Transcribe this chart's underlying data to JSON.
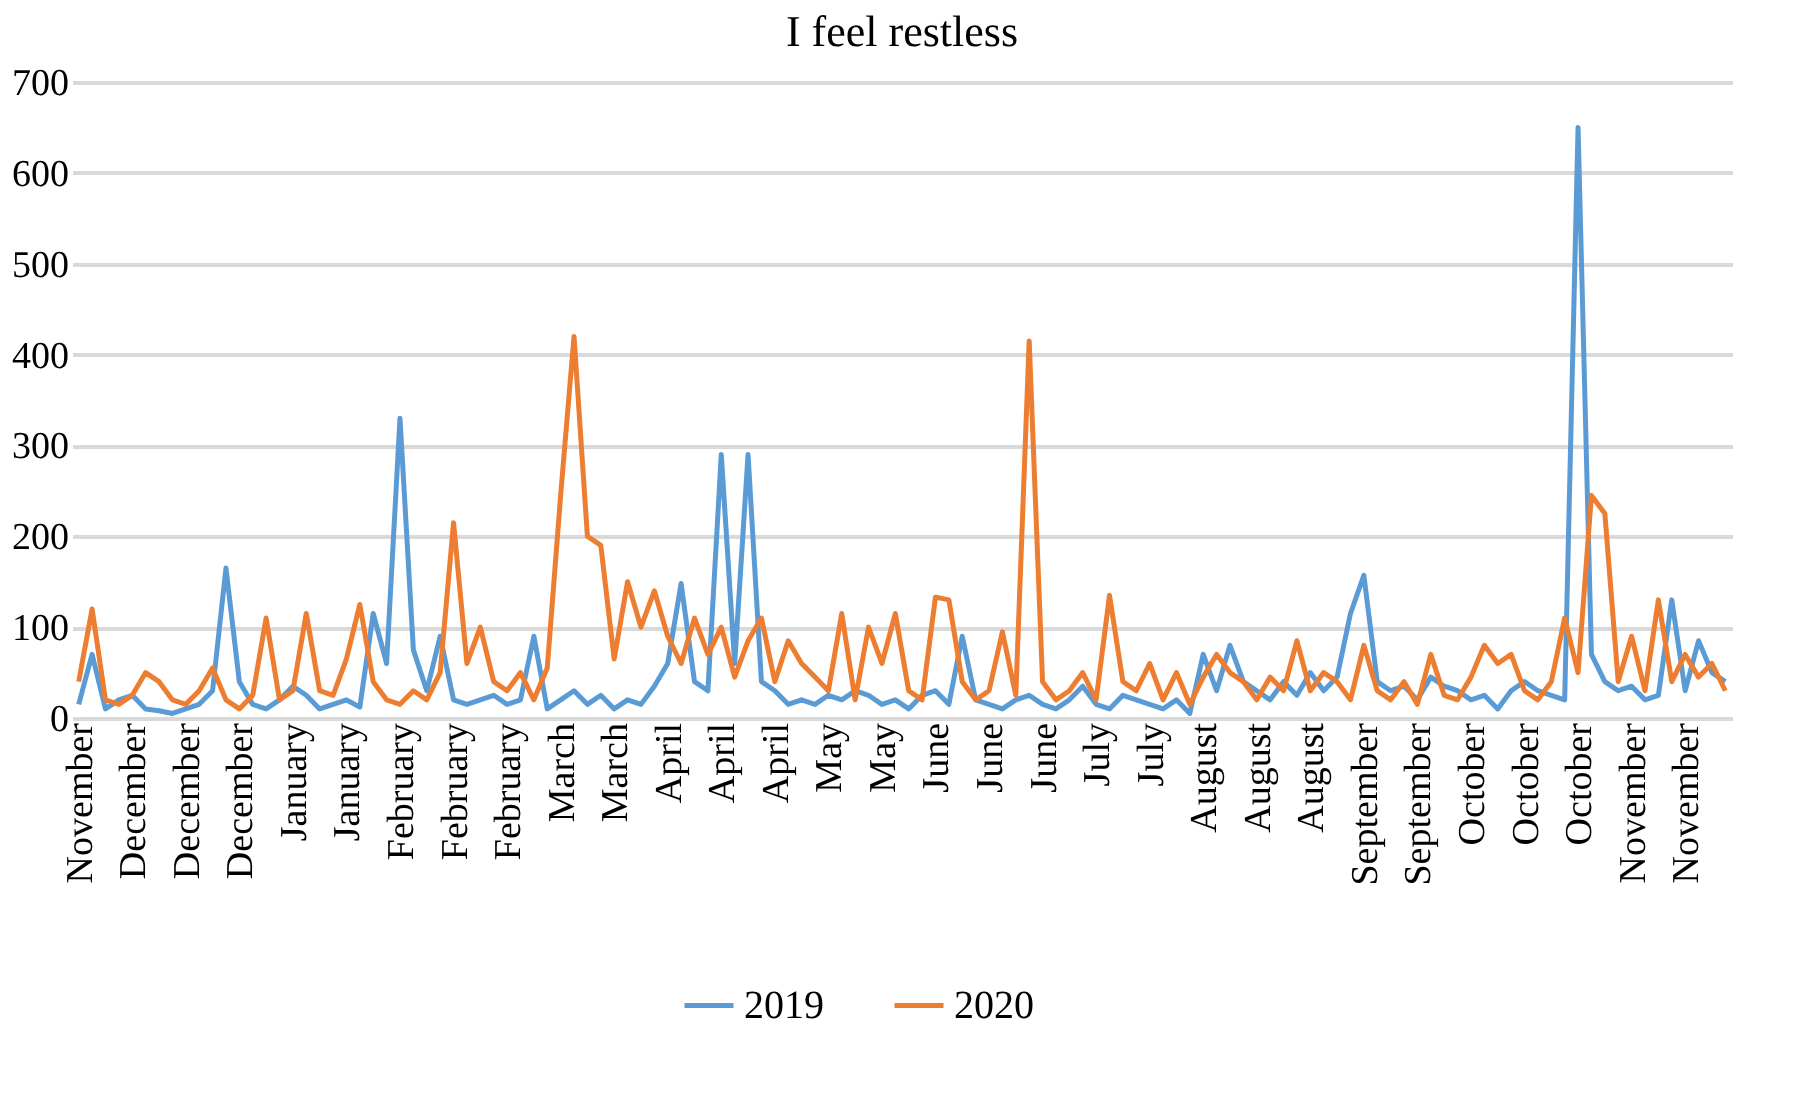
{
  "chart_data": {
    "type": "line",
    "title": "I feel restless",
    "categories": [
      "November",
      null,
      null,
      null,
      "December",
      null,
      null,
      null,
      "December",
      null,
      null,
      null,
      "December",
      null,
      null,
      null,
      "January",
      null,
      null,
      null,
      "January",
      null,
      null,
      null,
      "February",
      null,
      null,
      null,
      "February",
      null,
      null,
      null,
      "February",
      null,
      null,
      null,
      "March",
      null,
      null,
      null,
      "March",
      null,
      null,
      null,
      "April",
      null,
      null,
      null,
      "April",
      null,
      null,
      null,
      "April",
      null,
      null,
      null,
      "May",
      null,
      null,
      null,
      "May",
      null,
      null,
      null,
      "June",
      null,
      null,
      null,
      "June",
      null,
      null,
      null,
      "June",
      null,
      null,
      null,
      "July",
      null,
      null,
      null,
      "July",
      null,
      null,
      null,
      "August",
      null,
      null,
      null,
      "August",
      null,
      null,
      null,
      "August",
      null,
      null,
      null,
      "September",
      null,
      null,
      null,
      "September",
      null,
      null,
      null,
      "October",
      null,
      null,
      null,
      "October",
      null,
      null,
      null,
      "October",
      null,
      null,
      null,
      "November",
      null,
      null,
      null,
      "November",
      null,
      null,
      null
    ],
    "series": [
      {
        "name": "2019",
        "color": "#5b9bd5",
        "values": [
          15,
          70,
          10,
          20,
          25,
          10,
          8,
          5,
          10,
          15,
          30,
          165,
          40,
          15,
          10,
          20,
          35,
          25,
          10,
          15,
          20,
          12,
          115,
          60,
          330,
          75,
          30,
          90,
          20,
          15,
          20,
          25,
          15,
          20,
          90,
          10,
          20,
          30,
          15,
          25,
          10,
          20,
          15,
          35,
          60,
          148,
          40,
          30,
          290,
          60,
          290,
          40,
          30,
          15,
          20,
          15,
          25,
          20,
          30,
          25,
          15,
          20,
          10,
          25,
          30,
          15,
          90,
          20,
          15,
          10,
          20,
          25,
          15,
          10,
          20,
          35,
          15,
          10,
          25,
          20,
          15,
          10,
          20,
          5,
          70,
          30,
          80,
          40,
          30,
          20,
          40,
          25,
          50,
          30,
          45,
          115,
          157,
          40,
          30,
          35,
          20,
          45,
          35,
          30,
          20,
          25,
          10,
          30,
          40,
          30,
          25,
          20,
          650,
          70,
          40,
          30,
          35,
          20,
          25,
          130,
          30,
          85,
          50,
          40
        ]
      },
      {
        "name": "2020",
        "color": "#ed7d31",
        "values": [
          40,
          120,
          20,
          15,
          25,
          50,
          40,
          20,
          15,
          30,
          55,
          20,
          10,
          25,
          110,
          20,
          30,
          115,
          30,
          25,
          65,
          125,
          40,
          20,
          15,
          30,
          20,
          50,
          215,
          60,
          100,
          40,
          30,
          50,
          20,
          55,
          245,
          420,
          200,
          190,
          65,
          150,
          100,
          140,
          90,
          60,
          110,
          70,
          100,
          45,
          85,
          110,
          40,
          85,
          60,
          45,
          30,
          115,
          20,
          100,
          60,
          115,
          30,
          20,
          133,
          130,
          40,
          20,
          30,
          95,
          25,
          415,
          40,
          20,
          30,
          50,
          20,
          135,
          40,
          30,
          60,
          20,
          50,
          15,
          45,
          70,
          50,
          40,
          20,
          45,
          30,
          85,
          30,
          50,
          40,
          20,
          80,
          30,
          20,
          40,
          15,
          70,
          25,
          20,
          45,
          80,
          60,
          70,
          30,
          20,
          40,
          110,
          50,
          245,
          225,
          40,
          90,
          30,
          130,
          40,
          70,
          45,
          60,
          30
        ]
      }
    ],
    "ylim": [
      0,
      700
    ],
    "yticks": [
      0,
      100,
      200,
      300,
      400,
      500,
      600,
      700
    ],
    "grid": "y",
    "legend": "bottom",
    "line_style": "solid",
    "marker": "none"
  }
}
